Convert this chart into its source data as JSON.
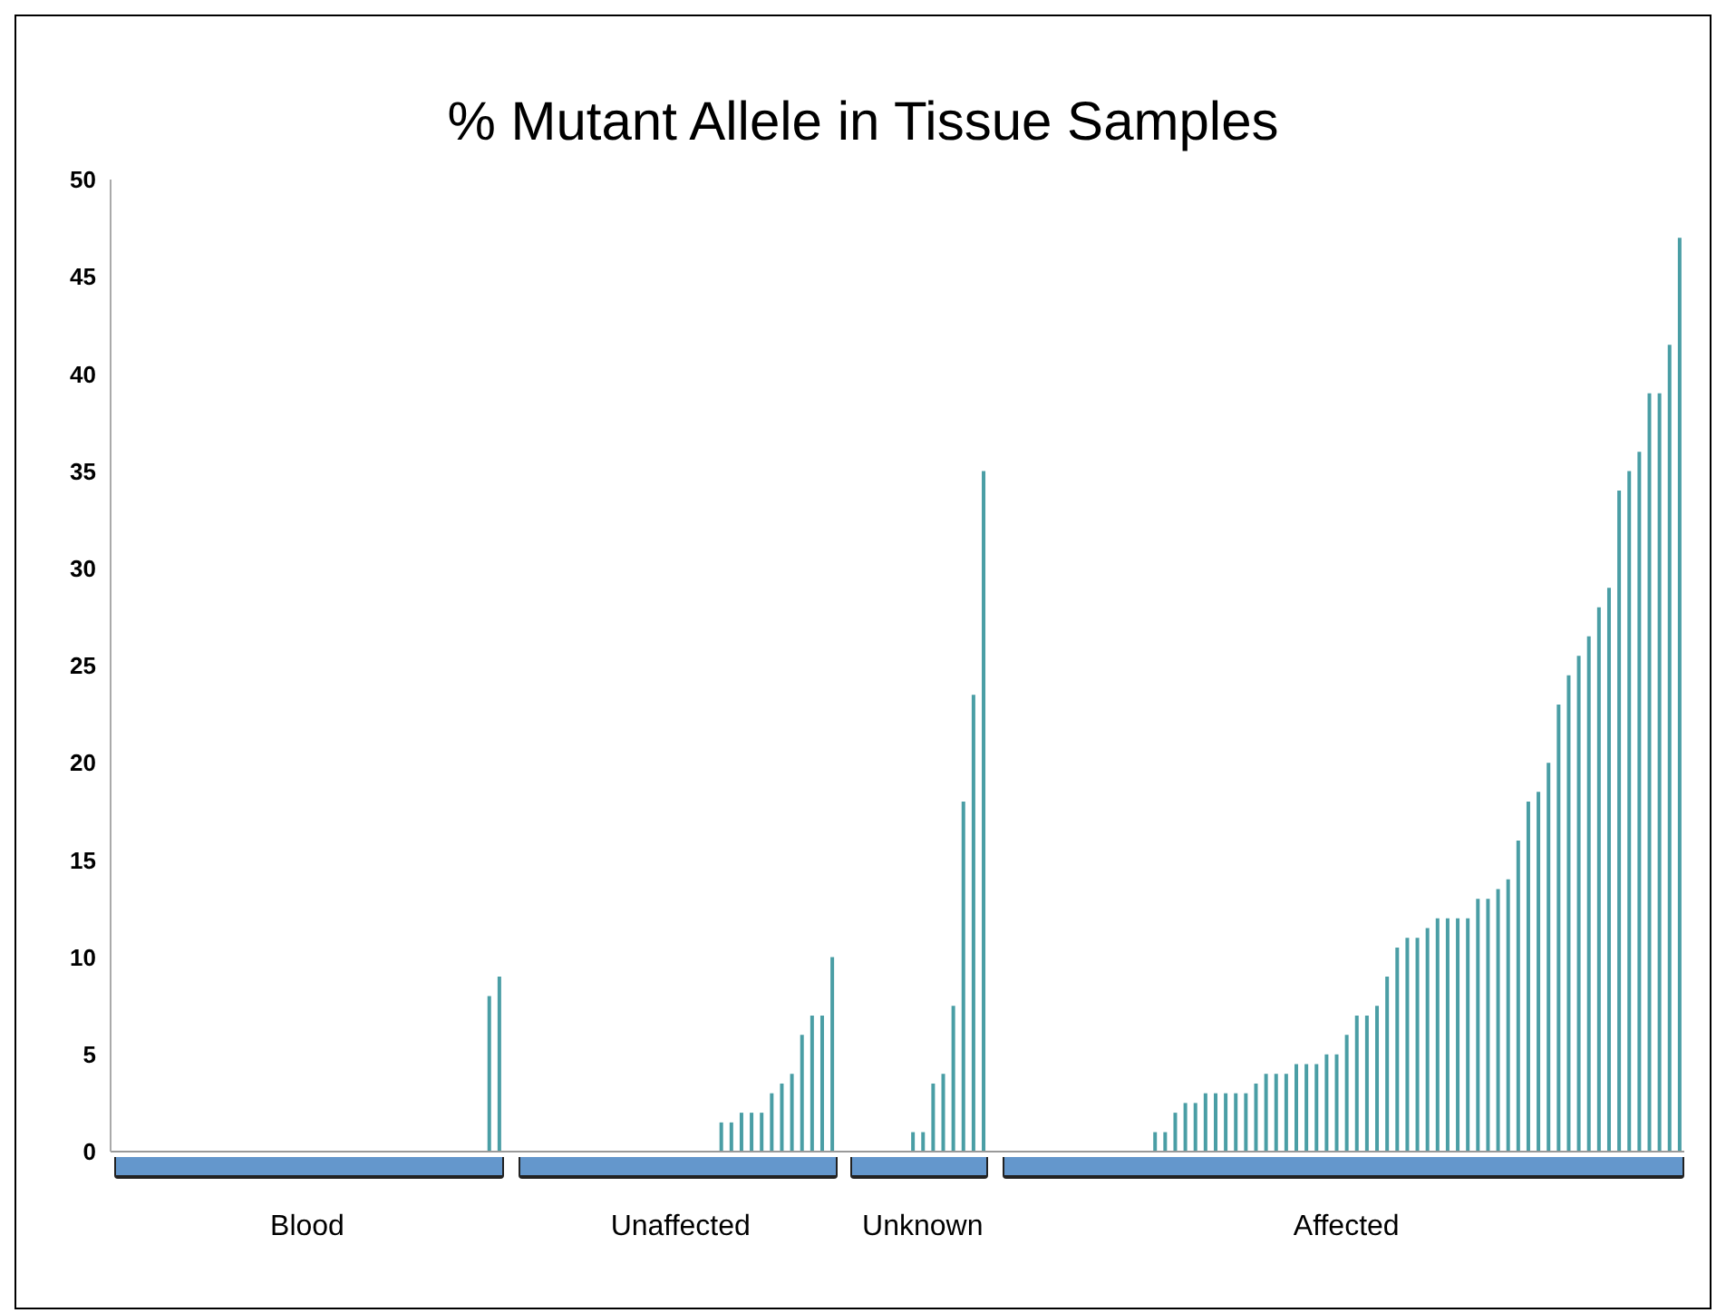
{
  "chart_data": {
    "type": "bar",
    "title": "% Mutant Allele in Tissue Samples",
    "categories": [
      null,
      null,
      null,
      null,
      null,
      null,
      null,
      null,
      null,
      null,
      null,
      null,
      null,
      null,
      null,
      null,
      null,
      null,
      null,
      "Blood",
      null,
      null,
      null,
      null,
      null,
      null,
      null,
      null,
      null,
      null,
      null,
      null,
      null,
      null,
      null,
      null,
      null,
      null,
      null,
      null,
      null,
      null,
      null,
      null,
      null,
      null,
      null,
      null,
      null,
      null,
      null,
      null,
      null,
      null,
      null,
      null,
      "Unaffected",
      null,
      null,
      null,
      null,
      null,
      null,
      null,
      null,
      null,
      null,
      null,
      null,
      null,
      null,
      null,
      null,
      null,
      null,
      null,
      null,
      null,
      null,
      null,
      "Unknown",
      null,
      null,
      null,
      null,
      null,
      null,
      null,
      null,
      null,
      null,
      null,
      null,
      null,
      null,
      null,
      null,
      null,
      null,
      null,
      null,
      null,
      null,
      null,
      null,
      null,
      null,
      null,
      null,
      null,
      null,
      null,
      null,
      null,
      null,
      null,
      null,
      null,
      null,
      null,
      null,
      null,
      "Affected",
      null,
      null,
      null,
      null,
      null,
      null,
      null,
      null,
      null,
      null,
      null,
      null,
      null,
      null,
      null,
      null,
      null,
      null,
      null,
      null,
      null,
      null,
      null,
      null,
      null,
      null,
      null,
      null,
      null,
      null,
      null,
      null,
      null
    ],
    "series": [
      {
        "color": "#4a9ea5",
        "values": [
          0,
          0,
          0,
          0,
          0,
          0,
          0,
          0,
          0,
          0,
          0,
          0,
          0,
          0,
          0,
          0,
          0,
          0,
          0,
          0,
          0,
          0,
          0,
          0,
          0,
          0,
          0,
          0,
          0,
          0,
          0,
          0,
          0,
          0,
          0,
          0,
          0,
          8,
          9,
          null,
          0,
          0,
          0,
          0,
          0,
          0,
          0,
          0,
          0,
          0,
          0,
          0,
          0,
          0,
          0,
          0,
          0,
          0,
          0,
          0,
          1.5,
          1.5,
          2,
          2,
          2,
          3,
          3.5,
          4,
          6,
          7,
          7,
          10,
          null,
          0,
          0,
          0,
          0,
          0,
          0,
          1,
          1,
          3.5,
          4,
          7.5,
          18,
          23.5,
          35,
          null,
          0,
          0,
          0,
          0,
          0,
          0,
          0,
          0,
          0,
          0,
          0,
          0,
          0,
          0,
          0,
          1,
          1,
          2,
          2.5,
          2.5,
          3,
          3,
          3,
          3,
          3,
          3.5,
          4,
          4,
          4,
          4.5,
          4.5,
          4.5,
          5,
          5,
          6,
          7,
          7,
          7.5,
          9,
          10.5,
          11,
          11,
          11.5,
          12,
          12,
          12,
          12,
          13,
          13,
          13.5,
          14,
          16,
          18,
          18.5,
          20,
          23,
          24.5,
          25.5,
          26.5,
          28,
          29,
          34,
          35,
          36,
          39,
          39,
          41.5,
          47
        ]
      }
    ],
    "ylim": [
      0,
      50
    ],
    "yticks": [
      0,
      5,
      10,
      15,
      20,
      25,
      30,
      35,
      40,
      45,
      50
    ],
    "grid": false,
    "legend": false
  }
}
